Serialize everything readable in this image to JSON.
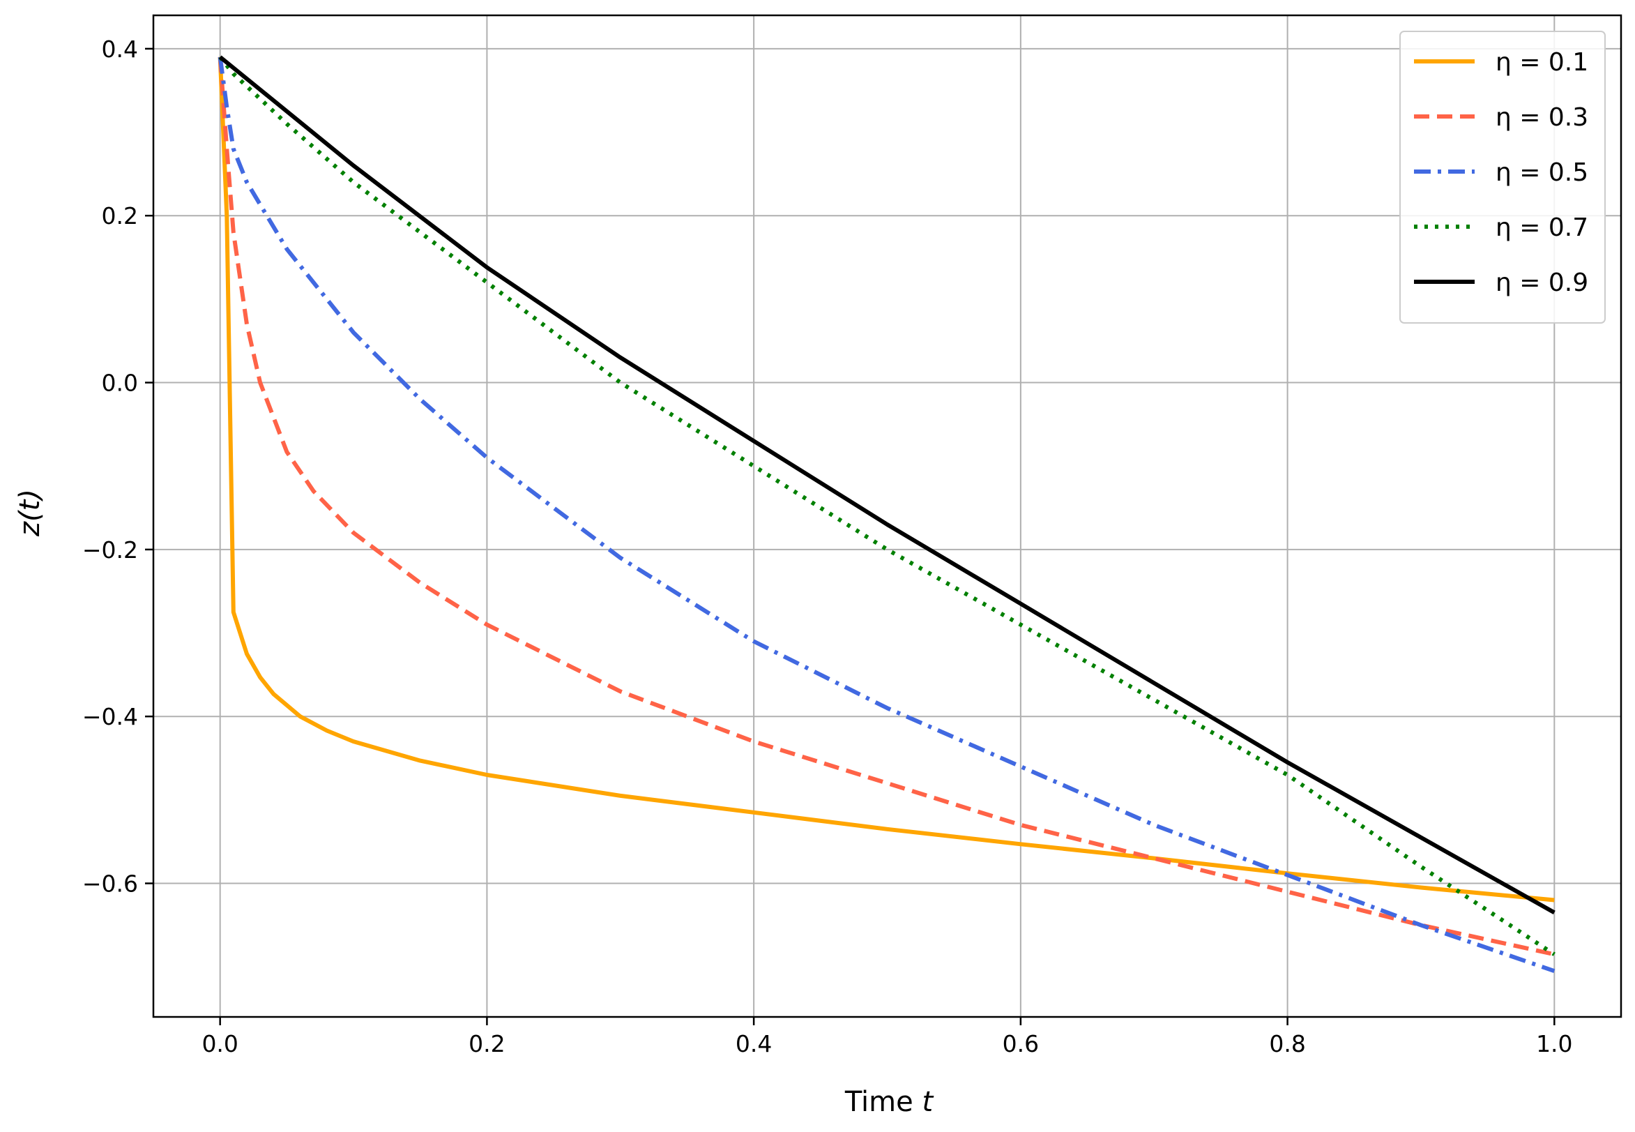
{
  "chart_data": {
    "type": "line",
    "title": "",
    "xlabel": "Time",
    "xlabel_var": "t",
    "ylabel": "z(t)",
    "xlim": [
      -0.05,
      1.05
    ],
    "ylim": [
      -0.76,
      0.44
    ],
    "xticks": [
      0.0,
      0.2,
      0.4,
      0.6,
      0.8,
      1.0
    ],
    "xtick_labels": [
      "0.0",
      "0.2",
      "0.4",
      "0.6",
      "0.8",
      "1.0"
    ],
    "yticks": [
      -0.6,
      -0.4,
      -0.2,
      0.0,
      0.2,
      0.4
    ],
    "ytick_labels": [
      "−0.6",
      "−0.4",
      "−0.2",
      "0.0",
      "0.2",
      "0.4"
    ],
    "grid": true,
    "legend_position": "top-right",
    "series": [
      {
        "name": "η = 0.1",
        "color": "#FFA500",
        "style": "solid",
        "x": [
          0,
          0.005,
          0.01,
          0.02,
          0.03,
          0.04,
          0.06,
          0.08,
          0.1,
          0.15,
          0.2,
          0.3,
          0.4,
          0.5,
          0.6,
          0.7,
          0.8,
          0.9,
          1.0
        ],
        "y": [
          0.39,
          0.2,
          -0.275,
          -0.325,
          -0.353,
          -0.373,
          -0.4,
          -0.417,
          -0.43,
          -0.453,
          -0.47,
          -0.495,
          -0.515,
          -0.535,
          -0.553,
          -0.57,
          -0.588,
          -0.605,
          -0.62
        ]
      },
      {
        "name": "η = 0.3",
        "color": "#FF6347",
        "style": "dashed",
        "x": [
          0,
          0.005,
          0.01,
          0.02,
          0.03,
          0.05,
          0.07,
          0.1,
          0.15,
          0.2,
          0.3,
          0.4,
          0.5,
          0.6,
          0.7,
          0.8,
          0.9,
          1.0
        ],
        "y": [
          0.39,
          0.28,
          0.18,
          0.07,
          0.0,
          -0.083,
          -0.13,
          -0.18,
          -0.24,
          -0.29,
          -0.37,
          -0.43,
          -0.48,
          -0.53,
          -0.57,
          -0.61,
          -0.65,
          -0.685
        ]
      },
      {
        "name": "η = 0.5",
        "color": "#4169E1",
        "style": "dashdot",
        "x": [
          0,
          0.005,
          0.01,
          0.02,
          0.05,
          0.1,
          0.15,
          0.2,
          0.3,
          0.4,
          0.5,
          0.6,
          0.7,
          0.8,
          0.9,
          1.0
        ],
        "y": [
          0.39,
          0.33,
          0.28,
          0.24,
          0.16,
          0.06,
          -0.02,
          -0.09,
          -0.21,
          -0.31,
          -0.39,
          -0.46,
          -0.53,
          -0.59,
          -0.65,
          -0.705
        ]
      },
      {
        "name": "η = 0.7",
        "color": "#008000",
        "style": "dotted",
        "x": [
          0,
          0.01,
          0.03,
          0.05,
          0.1,
          0.15,
          0.2,
          0.3,
          0.4,
          0.5,
          0.6,
          0.7,
          0.8,
          0.9,
          1.0
        ],
        "y": [
          0.39,
          0.37,
          0.34,
          0.31,
          0.24,
          0.18,
          0.12,
          0.0,
          -0.1,
          -0.2,
          -0.29,
          -0.38,
          -0.47,
          -0.58,
          -0.685
        ]
      },
      {
        "name": "η = 0.9",
        "color": "#000000",
        "style": "solid",
        "x": [
          0,
          0.1,
          0.2,
          0.3,
          0.4,
          0.5,
          0.6,
          0.7,
          0.8,
          0.9,
          1.0
        ],
        "y": [
          0.39,
          0.26,
          0.138,
          0.03,
          -0.07,
          -0.17,
          -0.265,
          -0.36,
          -0.455,
          -0.545,
          -0.635
        ]
      }
    ]
  }
}
